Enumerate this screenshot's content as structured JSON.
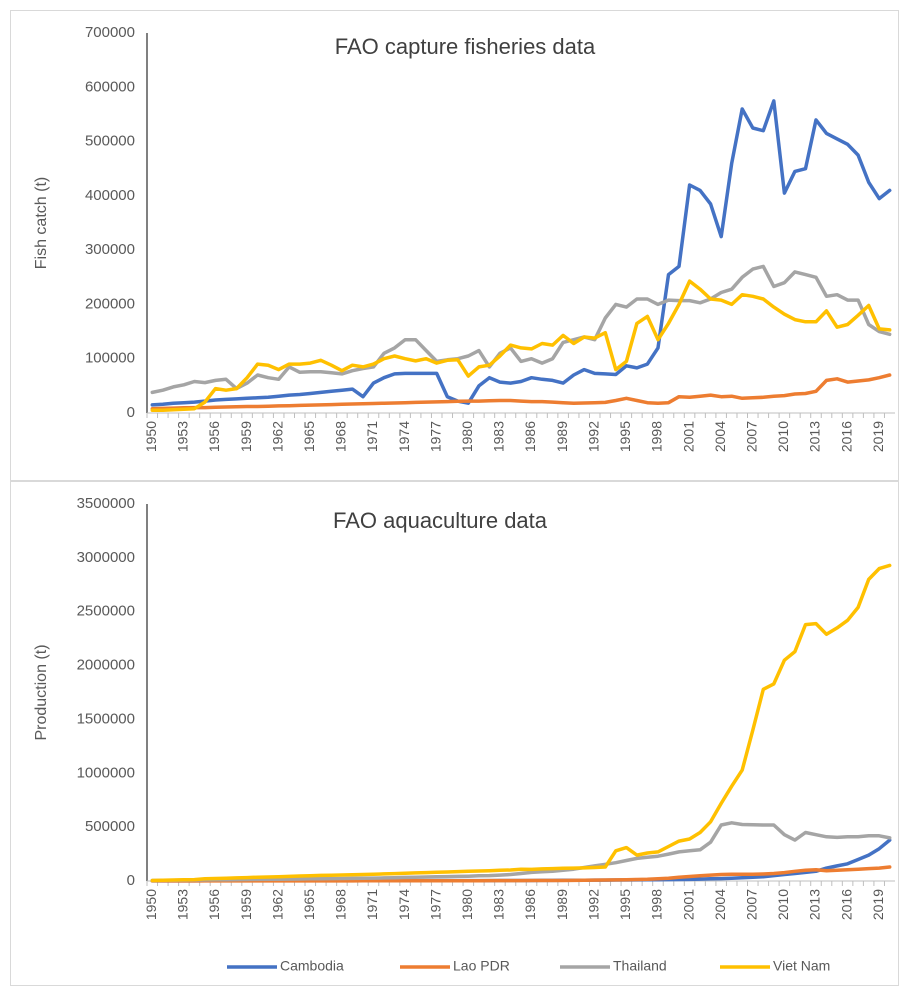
{
  "chart_data": [
    {
      "type": "line",
      "title": "FAO capture fisheries data",
      "ylabel": "Fish catch (t)",
      "categories": [
        "1950",
        null,
        null,
        "1953",
        null,
        null,
        "1956",
        null,
        null,
        "1959",
        null,
        null,
        "1962",
        null,
        null,
        "1965",
        null,
        null,
        "1968",
        null,
        null,
        "1971",
        null,
        null,
        "1974",
        null,
        null,
        "1977",
        null,
        null,
        "1980",
        null,
        null,
        "1983",
        null,
        null,
        "1986",
        null,
        null,
        "1989",
        null,
        null,
        "1992",
        null,
        null,
        "1995",
        null,
        null,
        "1998",
        null,
        null,
        "2001",
        null,
        null,
        "2004",
        null,
        null,
        "2007",
        null,
        null,
        "2010",
        null,
        null,
        "2013",
        null,
        null,
        "2016",
        null,
        null,
        "2019",
        null
      ],
      "ylim": [
        0,
        700000
      ],
      "yticks": [
        0,
        100000,
        200000,
        300000,
        400000,
        500000,
        600000,
        700000
      ],
      "grid": false,
      "series": [
        {
          "color": "#4472c4",
          "values": [
            15000,
            16000,
            18000,
            19000,
            20000,
            22000,
            24000,
            25000,
            26000,
            27000,
            28000,
            29000,
            31000,
            33000,
            34000,
            36000,
            38000,
            40000,
            42000,
            44000,
            30000,
            55000,
            65000,
            72000,
            73000,
            73000,
            73000,
            73000,
            30000,
            22000,
            18000,
            50000,
            65000,
            57000,
            55000,
            58000,
            65000,
            62000,
            60000,
            55000,
            70000,
            80000,
            73000,
            72000,
            71000,
            87000,
            83000,
            90000,
            120000,
            255000,
            270000,
            420000,
            410000,
            385000,
            325000,
            460000,
            560000,
            525000,
            520000,
            575000,
            405000,
            445000,
            450000,
            540000,
            515000,
            505000,
            495000,
            475000,
            425000,
            395000,
            410000
          ]
        },
        {
          "color": "#ed7d31",
          "values": [
            8000,
            8500,
            9000,
            9500,
            10000,
            10000,
            10500,
            11000,
            11500,
            12000,
            12000,
            12500,
            13000,
            13500,
            14000,
            14500,
            15000,
            15500,
            16000,
            16500,
            17000,
            17500,
            18000,
            18500,
            19000,
            19500,
            20000,
            20500,
            21000,
            21500,
            22000,
            22000,
            22500,
            23000,
            23000,
            22000,
            21000,
            21000,
            20000,
            19000,
            18000,
            18500,
            19000,
            19500,
            23000,
            27000,
            23000,
            19000,
            18000,
            19000,
            30000,
            29000,
            31000,
            33000,
            30000,
            31000,
            27000,
            28000,
            29000,
            31000,
            32000,
            35000,
            36000,
            40000,
            60000,
            63000,
            57000,
            59000,
            61000,
            65000,
            70000
          ]
        },
        {
          "color": "#a5a5a5",
          "values": [
            38000,
            42000,
            48000,
            52000,
            58000,
            56000,
            60000,
            62000,
            45000,
            55000,
            70000,
            65000,
            62000,
            85000,
            75000,
            76000,
            76000,
            74000,
            72000,
            78000,
            82000,
            85000,
            110000,
            120000,
            135000,
            135000,
            115000,
            95000,
            98000,
            100000,
            105000,
            115000,
            85000,
            110000,
            120000,
            95000,
            100000,
            92000,
            100000,
            130000,
            135000,
            140000,
            135000,
            175000,
            200000,
            195000,
            210000,
            210000,
            200000,
            208000,
            207000,
            207000,
            203000,
            210000,
            222000,
            228000,
            250000,
            265000,
            270000,
            233000,
            240000,
            260000,
            255000,
            250000,
            215000,
            218000,
            208000,
            208000,
            163000,
            150000,
            145000
          ]
        },
        {
          "color": "#ffc000",
          "values": [
            5000,
            5000,
            6000,
            7000,
            8000,
            20000,
            45000,
            42000,
            45000,
            65000,
            90000,
            88000,
            80000,
            90000,
            90000,
            92000,
            97000,
            88000,
            78000,
            88000,
            85000,
            90000,
            100000,
            105000,
            100000,
            96000,
            100000,
            92000,
            97000,
            98000,
            68000,
            85000,
            88000,
            105000,
            125000,
            120000,
            118000,
            128000,
            125000,
            143000,
            128000,
            140000,
            138000,
            148000,
            80000,
            95000,
            165000,
            178000,
            135000,
            165000,
            200000,
            243000,
            228000,
            210000,
            208000,
            200000,
            218000,
            215000,
            210000,
            195000,
            182000,
            172000,
            168000,
            168000,
            188000,
            158000,
            163000,
            180000,
            198000,
            155000,
            153000
          ]
        }
      ]
    },
    {
      "type": "line",
      "title": "FAO aquaculture data",
      "ylabel": "Production (t)",
      "categories": [
        "1950",
        null,
        null,
        "1953",
        null,
        null,
        "1956",
        null,
        null,
        "1959",
        null,
        null,
        "1962",
        null,
        null,
        "1965",
        null,
        null,
        "1968",
        null,
        null,
        "1971",
        null,
        null,
        "1974",
        null,
        null,
        "1977",
        null,
        null,
        "1980",
        null,
        null,
        "1983",
        null,
        null,
        "1986",
        null,
        null,
        "1989",
        null,
        null,
        "1992",
        null,
        null,
        "1995",
        null,
        null,
        "1998",
        null,
        null,
        "2001",
        null,
        null,
        "2004",
        null,
        null,
        "2007",
        null,
        null,
        "2010",
        null,
        null,
        "2013",
        null,
        null,
        "2016",
        null,
        null,
        "2019",
        null
      ],
      "ylim": [
        0,
        3500000
      ],
      "yticks": [
        0,
        500000,
        1000000,
        1500000,
        2000000,
        2500000,
        3000000,
        3500000
      ],
      "grid": false,
      "legend": "bottom",
      "series": [
        {
          "name": "Cambodia",
          "color": "#4472c4",
          "values": [
            1000,
            1000,
            1000,
            1000,
            1000,
            1500,
            1500,
            1500,
            1500,
            1500,
            2000,
            2000,
            2000,
            2000,
            2000,
            2500,
            2500,
            2500,
            2500,
            2500,
            3000,
            3000,
            3000,
            3000,
            3000,
            3500,
            3500,
            3500,
            3500,
            3500,
            4000,
            4000,
            4000,
            4500,
            4500,
            5000,
            5000,
            5500,
            6000,
            6500,
            7000,
            7500,
            8000,
            8500,
            9000,
            9500,
            10000,
            11000,
            12000,
            13000,
            14000,
            15000,
            18000,
            20000,
            22000,
            26000,
            30000,
            35000,
            40000,
            50000,
            60000,
            70000,
            80000,
            90000,
            120000,
            140000,
            160000,
            200000,
            240000,
            300000,
            380000
          ]
        },
        {
          "name": "Lao PDR",
          "color": "#ed7d31",
          "values": [
            500,
            500,
            500,
            500,
            500,
            500,
            500,
            500,
            500,
            500,
            1000,
            1000,
            1000,
            1000,
            1000,
            1000,
            1000,
            1000,
            1000,
            1000,
            2000,
            2000,
            2000,
            2000,
            2000,
            2000,
            2000,
            2000,
            2000,
            2000,
            3000,
            3000,
            3500,
            3500,
            4000,
            4000,
            4500,
            4500,
            5000,
            5000,
            6000,
            7000,
            8000,
            9000,
            10000,
            12000,
            14000,
            16000,
            20000,
            25000,
            35000,
            42000,
            48000,
            55000,
            60000,
            62000,
            62000,
            63000,
            65000,
            70000,
            78000,
            90000,
            100000,
            105000,
            95000,
            100000,
            105000,
            110000,
            115000,
            120000,
            130000
          ]
        },
        {
          "name": "Thailand",
          "color": "#a5a5a5",
          "values": [
            5000,
            6000,
            7000,
            8000,
            9000,
            10000,
            11000,
            12000,
            13000,
            14000,
            15000,
            16000,
            17000,
            18000,
            19000,
            20000,
            21000,
            22000,
            23000,
            24000,
            25000,
            27000,
            29000,
            31000,
            33000,
            35000,
            37000,
            39000,
            41000,
            43000,
            45000,
            48000,
            50000,
            55000,
            60000,
            70000,
            80000,
            85000,
            90000,
            100000,
            110000,
            125000,
            140000,
            155000,
            170000,
            190000,
            210000,
            220000,
            230000,
            250000,
            270000,
            280000,
            290000,
            360000,
            520000,
            540000,
            525000,
            522000,
            520000,
            520000,
            430000,
            380000,
            450000,
            430000,
            410000,
            405000,
            410000,
            410000,
            420000,
            420000,
            400000
          ]
        },
        {
          "name": "Viet Nam",
          "color": "#ffc000",
          "values": [
            5000,
            7000,
            9000,
            11000,
            13000,
            20000,
            23000,
            26000,
            29000,
            32000,
            35000,
            37000,
            40000,
            43000,
            46000,
            49000,
            52000,
            54000,
            56000,
            58000,
            60000,
            63000,
            66000,
            69000,
            72000,
            75000,
            78000,
            81000,
            84000,
            87000,
            90000,
            93000,
            96000,
            99000,
            102000,
            110000,
            108000,
            112000,
            115000,
            118000,
            120000,
            122000,
            125000,
            130000,
            280000,
            310000,
            240000,
            260000,
            270000,
            320000,
            370000,
            390000,
            450000,
            550000,
            720000,
            880000,
            1030000,
            1400000,
            1780000,
            1830000,
            2050000,
            2130000,
            2380000,
            2390000,
            2290000,
            2350000,
            2420000,
            2540000,
            2800000,
            2900000,
            2930000
          ]
        }
      ]
    }
  ]
}
